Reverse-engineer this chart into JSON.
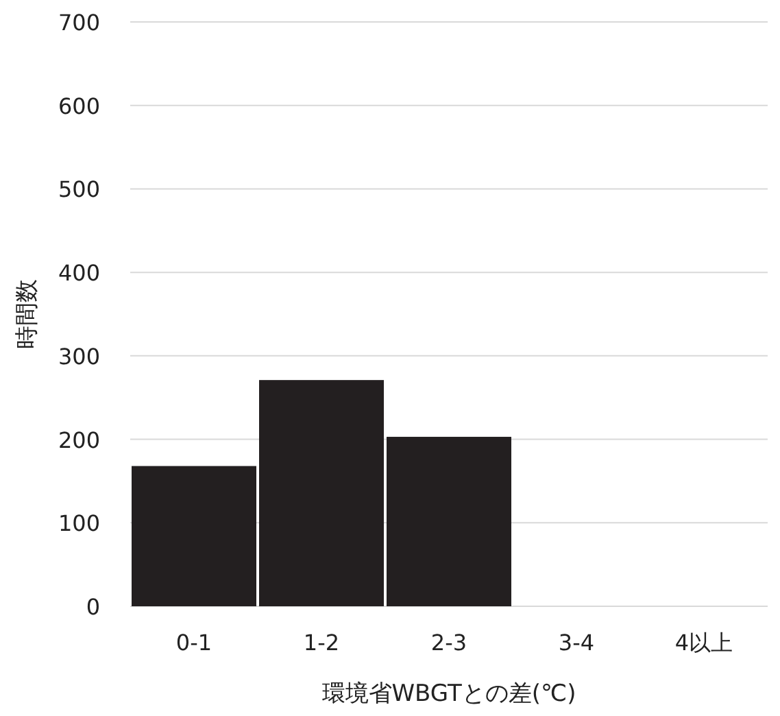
{
  "chart_data": {
    "type": "bar",
    "xlabel": "環境省WBGTとの差(℃)",
    "ylabel": "時間数",
    "categories": [
      "0-1",
      "1-2",
      "2-3",
      "3-4",
      "4以上"
    ],
    "values": [
      168,
      271,
      203,
      0,
      0
    ],
    "color": "#231f20",
    "ylim": [
      0,
      700
    ],
    "yticks": [
      0,
      100,
      200,
      300,
      400,
      500,
      600,
      700
    ],
    "grid": "y"
  }
}
